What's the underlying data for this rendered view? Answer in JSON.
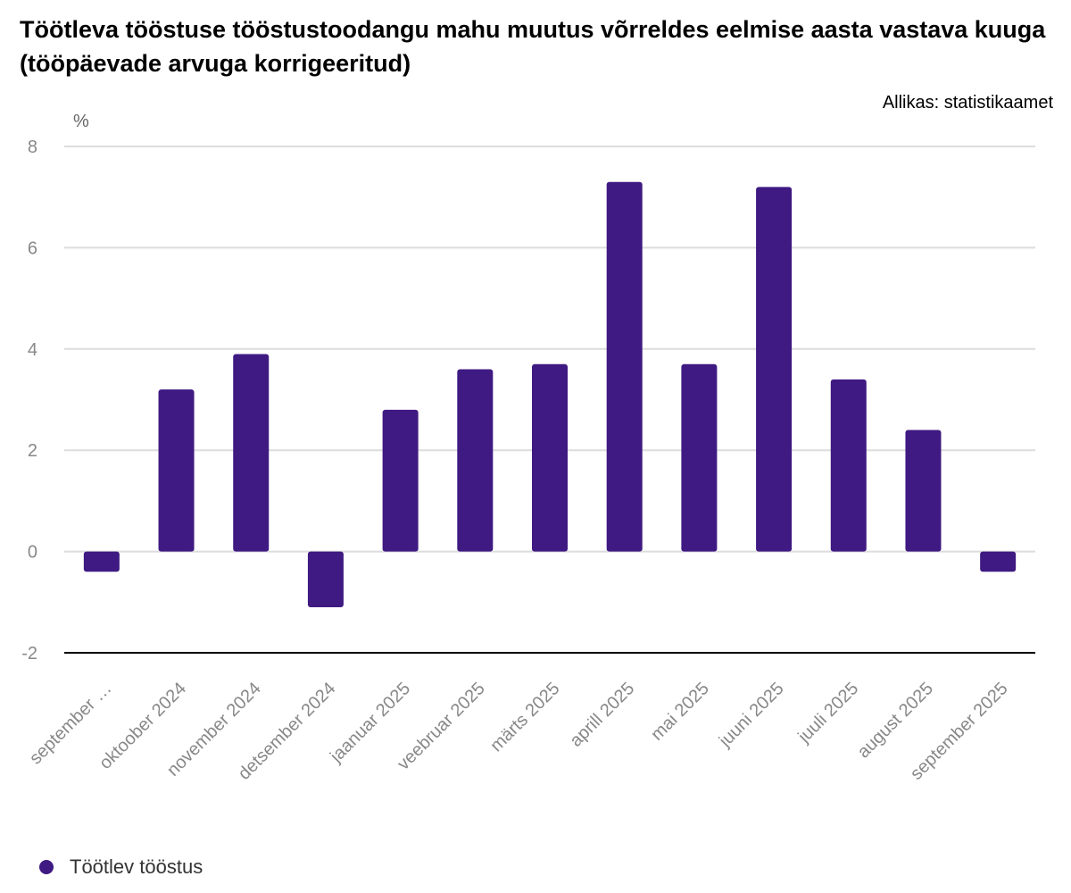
{
  "chart_data": {
    "type": "bar",
    "title": "Töötleva tööstuse tööstustoodangu mahu muutus võrreldes eelmise aasta vastava kuuga (tööpäevade arvuga korrigeeritud)",
    "source": "Allikas: statistikaamet",
    "ylabel": "%",
    "xlabel": "",
    "ylim": [
      -2,
      8
    ],
    "yticks": [
      -2,
      0,
      2,
      4,
      6,
      8
    ],
    "grid": true,
    "legend_placement": "bottom-left",
    "categories": [
      "september …",
      "oktoober 2024",
      "november 2024",
      "detsember 2024",
      "jaanuar 2025",
      "veebruar 2025",
      "märts 2025",
      "aprill 2025",
      "mai 2025",
      "juuni 2025",
      "juuli 2025",
      "august 2025",
      "september 2025"
    ],
    "series": [
      {
        "name": "Töötlev tööstus",
        "color": "#3f1a82",
        "values": [
          -0.4,
          3.2,
          3.9,
          -1.1,
          2.8,
          3.6,
          3.7,
          7.3,
          3.7,
          7.2,
          3.4,
          2.4,
          -0.4
        ]
      }
    ]
  }
}
